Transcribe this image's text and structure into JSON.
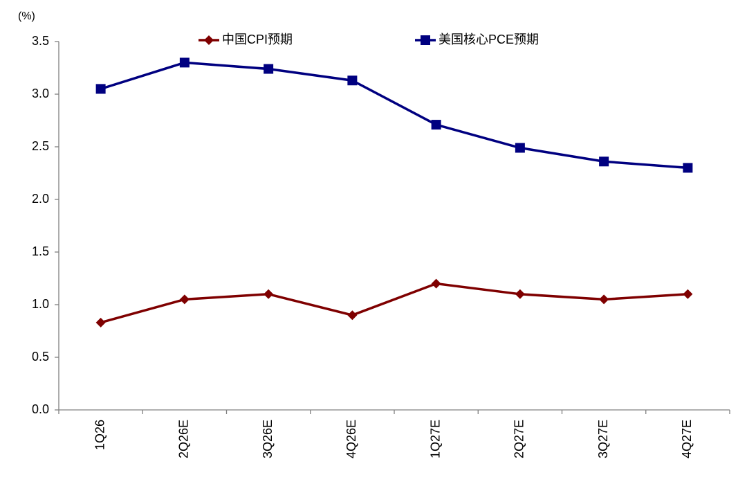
{
  "chart_data": {
    "type": "line",
    "y_label": "(%)",
    "categories": [
      "1Q26",
      "2Q26E",
      "3Q26E",
      "4Q26E",
      "1Q27E",
      "2Q27E",
      "3Q27E",
      "4Q27E"
    ],
    "series": [
      {
        "name": "中国CPI预期",
        "color": "#7f0000",
        "marker": "diamond",
        "values": [
          0.83,
          1.05,
          1.1,
          0.9,
          1.2,
          1.1,
          1.05,
          1.1
        ]
      },
      {
        "name": "美国核心PCE预期",
        "color": "#000080",
        "marker": "square",
        "values": [
          3.05,
          3.3,
          3.24,
          3.13,
          2.71,
          2.49,
          2.36,
          2.3
        ]
      }
    ],
    "ylim": [
      0,
      3.5
    ],
    "yticks": [
      {
        "value": 0,
        "label": "0.0"
      },
      0.5,
      {
        "value": 1,
        "label": "1.0"
      },
      1.5,
      {
        "value": 2,
        "label": "2.0"
      },
      2.5,
      {
        "value": 3,
        "label": "3.0"
      },
      3.5
    ],
    "grid": false
  }
}
